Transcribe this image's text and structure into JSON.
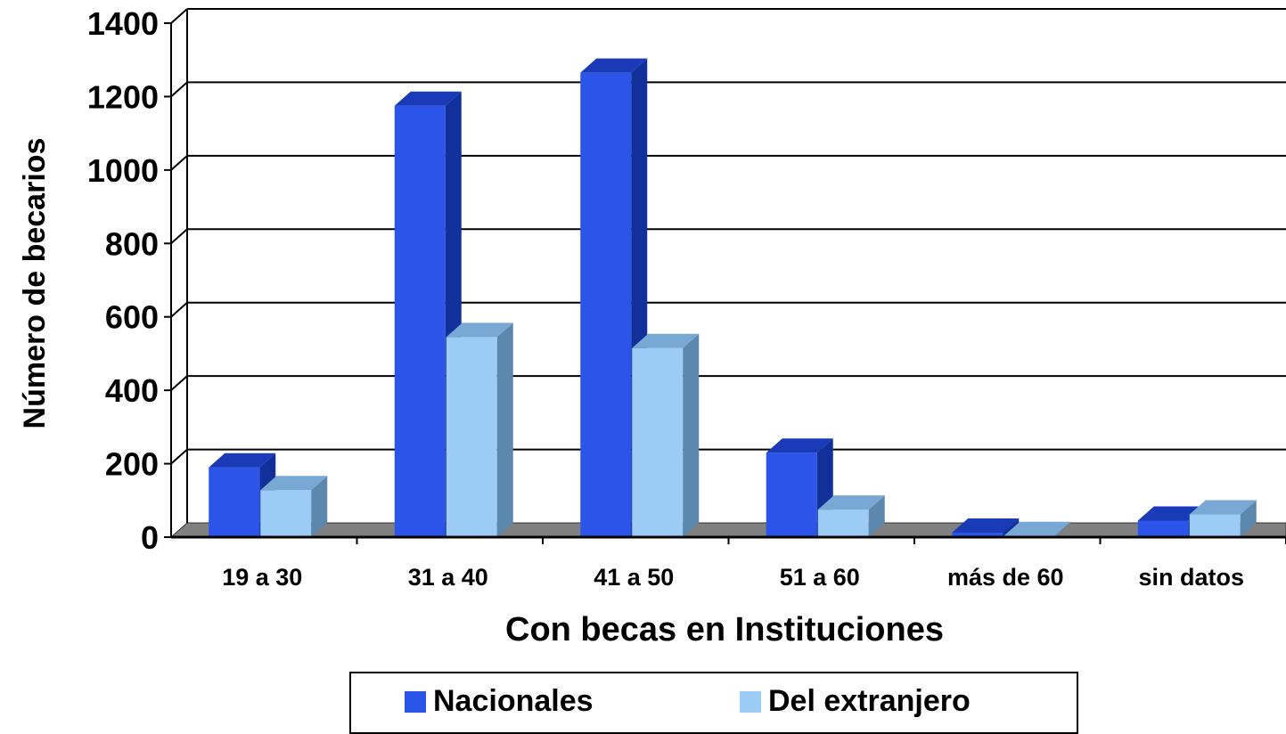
{
  "chart_data": {
    "type": "bar",
    "categories": [
      "19 a 30",
      "31 a 40",
      "41 a 50",
      "51 a 60",
      "más de 60",
      "sin datos"
    ],
    "series": [
      {
        "name": "Nacionales",
        "values": [
          190,
          1175,
          1265,
          230,
          12,
          45
        ]
      },
      {
        "name": "Del extranjero",
        "values": [
          128,
          545,
          515,
          75,
          3,
          62
        ]
      }
    ],
    "xlabel": "Con becas en Instituciones",
    "ylabel": "Número de becarios",
    "ylim": [
      0,
      1400
    ],
    "yticks": [
      0,
      200,
      400,
      600,
      800,
      1000,
      1200,
      1400
    ],
    "grid": true,
    "legend_position": "bottom",
    "colors": {
      "Nacionales": {
        "front": "#2b55e8",
        "side": "#12309a",
        "top": "#1a3ab8"
      },
      "Del extranjero": {
        "front": "#9cccf6",
        "side": "#5c88ae",
        "top": "#7aa8d4"
      },
      "floor": "#808080",
      "grid": "#000000"
    }
  }
}
